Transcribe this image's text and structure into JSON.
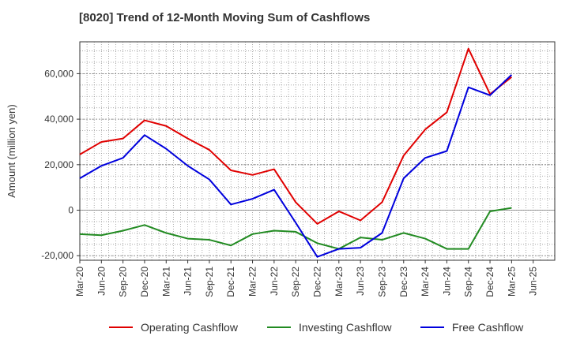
{
  "chart_data": {
    "type": "line",
    "title": "[8020]  Trend of 12-Month Moving Sum of Cashflows",
    "ylabel": "Amount (million yen)",
    "xlabel": "",
    "ylim": [
      -22000,
      74000
    ],
    "y_ticks": [
      -20000,
      0,
      20000,
      40000,
      60000
    ],
    "y_tick_labels": [
      "-20,000",
      "0",
      "20,000",
      "40,000",
      "60,000"
    ],
    "x_tick_labels": [
      "Mar-20",
      "Jun-20",
      "Sep-20",
      "Dec-20",
      "Mar-21",
      "Jun-21",
      "Sep-21",
      "Dec-21",
      "Mar-22",
      "Jun-22",
      "Sep-22",
      "Dec-22",
      "Mar-23",
      "Jun-23",
      "Sep-23",
      "Dec-23",
      "Mar-24",
      "Jun-24",
      "Sep-24",
      "Dec-24",
      "Mar-25",
      "Jun-25"
    ],
    "grid": true,
    "legend_position": "bottom",
    "series": [
      {
        "name": "Operating Cashflow",
        "color": "#e00000",
        "values": [
          24500,
          30000,
          31500,
          39500,
          37000,
          31500,
          26500,
          17500,
          15500,
          18000,
          3500,
          -6000,
          -500,
          -4500,
          3500,
          24000,
          35500,
          43000,
          71000,
          51000,
          58500
        ]
      },
      {
        "name": "Investing Cashflow",
        "color": "#228b22",
        "values": [
          -10500,
          -11000,
          -9000,
          -6500,
          -10000,
          -12500,
          -13000,
          -15500,
          -10500,
          -9000,
          -9500,
          -14500,
          -17000,
          -12000,
          -13000,
          -10000,
          -12500,
          -17000,
          -17000,
          -500,
          1000
        ]
      },
      {
        "name": "Free Cashflow",
        "color": "#0000dd",
        "values": [
          14000,
          19500,
          23000,
          33000,
          27000,
          19500,
          13500,
          2500,
          5000,
          9000,
          -5500,
          -20500,
          -17000,
          -16500,
          -10000,
          14000,
          23000,
          26000,
          54000,
          50500,
          59500
        ]
      }
    ]
  }
}
